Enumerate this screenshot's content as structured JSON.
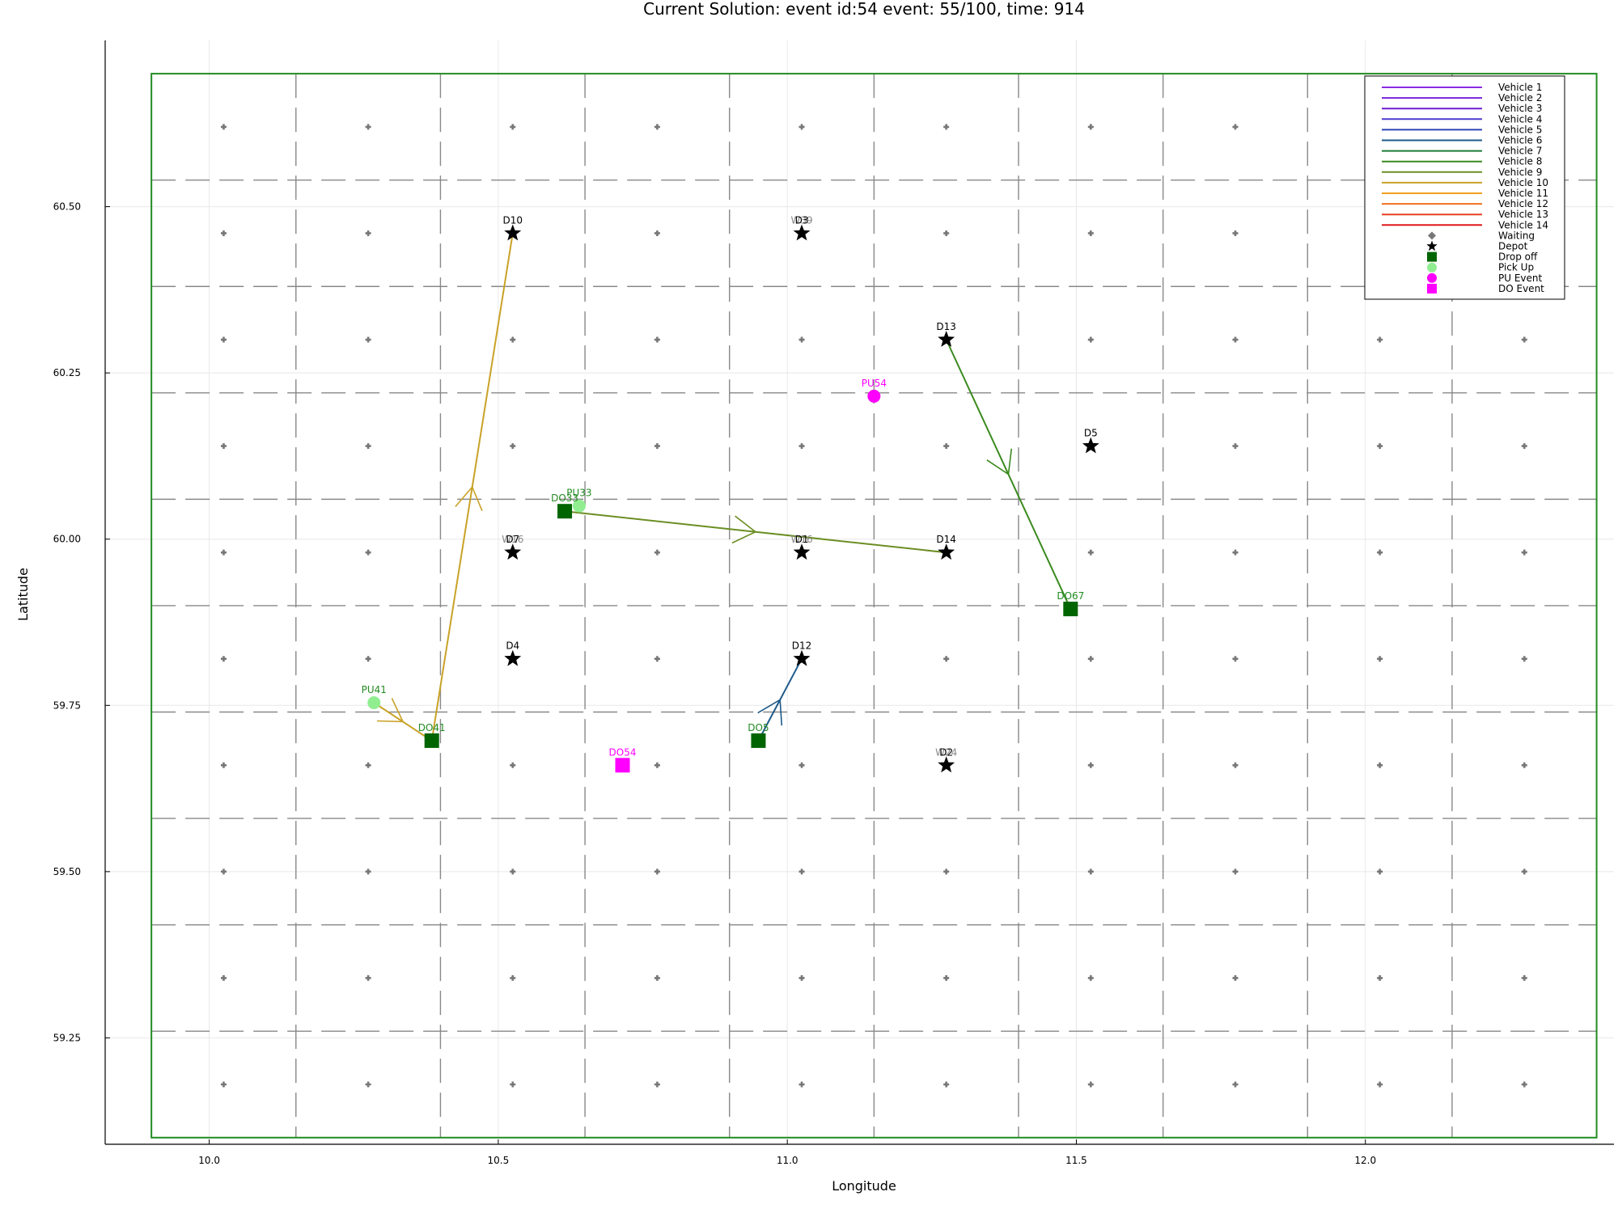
{
  "chart_data": {
    "type": "scatter",
    "title": "Current Solution: event id:54 event: 55/100, time: 914",
    "xlabel": "Longitude",
    "ylabel": "Latitude",
    "xlim": [
      9.82,
      12.43
    ],
    "ylim": [
      59.09,
      60.75
    ],
    "grid": true,
    "legend_position": "top-right",
    "x_ticks": [
      "10.0",
      "10.5",
      "11.0",
      "11.5",
      "12.0"
    ],
    "y_ticks": [
      "59.25",
      "59.50",
      "59.75",
      "60.00",
      "60.25",
      "60.50"
    ],
    "region": {
      "x": [
        9.9,
        12.4
      ],
      "y": [
        59.1,
        60.7
      ],
      "color": "#228B22"
    },
    "zone_grid": {
      "x": [
        10.15,
        10.4,
        10.65,
        10.9,
        11.15,
        11.4,
        11.65,
        11.9,
        12.15
      ],
      "y": [
        59.26,
        59.42,
        59.58,
        59.74,
        59.9,
        60.06,
        60.22,
        60.38,
        60.54
      ],
      "color": "#888888"
    },
    "waiting_grid": {
      "x": [
        10.025,
        10.275,
        10.525,
        10.775,
        11.025,
        11.275,
        11.525,
        11.775,
        12.025,
        12.275
      ],
      "y": [
        59.18,
        59.34,
        59.5,
        59.66,
        59.82,
        59.98,
        60.14,
        60.3,
        60.46,
        60.62
      ],
      "color": "#777777"
    },
    "waiting_labels": [
      {
        "label": "W39",
        "x": 11.025,
        "y": 60.46
      },
      {
        "label": "W16",
        "x": 10.525,
        "y": 59.98
      },
      {
        "label": "W16",
        "x": 11.025,
        "y": 59.98
      },
      {
        "label": "W24",
        "x": 11.275,
        "y": 59.66
      }
    ],
    "depots": [
      {
        "label": "D10",
        "x": 10.525,
        "y": 60.46
      },
      {
        "label": "D3",
        "x": 11.025,
        "y": 60.46
      },
      {
        "label": "D13",
        "x": 11.275,
        "y": 60.3
      },
      {
        "label": "D5",
        "x": 11.525,
        "y": 60.14
      },
      {
        "label": "D7",
        "x": 10.525,
        "y": 59.98
      },
      {
        "label": "D1",
        "x": 11.025,
        "y": 59.98
      },
      {
        "label": "D14",
        "x": 11.275,
        "y": 59.98
      },
      {
        "label": "D4",
        "x": 10.525,
        "y": 59.82
      },
      {
        "label": "D12",
        "x": 11.025,
        "y": 59.82
      },
      {
        "label": "D2",
        "x": 11.275,
        "y": 59.66
      }
    ],
    "dropoffs": [
      {
        "label": "DO33",
        "x": 10.615,
        "y": 60.042
      },
      {
        "label": "DO67",
        "x": 11.49,
        "y": 59.895
      },
      {
        "label": "DO41",
        "x": 10.385,
        "y": 59.697
      },
      {
        "label": "DO5",
        "x": 10.95,
        "y": 59.697
      }
    ],
    "pickups": [
      {
        "label": "PU33",
        "x": 10.64,
        "y": 60.05
      },
      {
        "label": "PU41",
        "x": 10.285,
        "y": 59.754
      }
    ],
    "pu_events": [
      {
        "label": "PU54",
        "x": 11.15,
        "y": 60.215
      }
    ],
    "do_events": [
      {
        "label": "DO54",
        "x": 10.715,
        "y": 59.66
      }
    ],
    "routes": [
      {
        "vehicle": "Vehicle 10",
        "color": "#c9a227",
        "points": [
          [
            10.285,
            59.754
          ],
          [
            10.385,
            59.697
          ],
          [
            10.525,
            60.46
          ]
        ]
      },
      {
        "vehicle": "Vehicle 9",
        "color": "#6b8e23",
        "points": [
          [
            10.615,
            60.042
          ],
          [
            11.275,
            59.98
          ]
        ]
      },
      {
        "vehicle": "Vehicle 8",
        "color": "#3a8a1e",
        "points": [
          [
            11.275,
            60.3
          ],
          [
            11.49,
            59.895
          ]
        ]
      },
      {
        "vehicle": "Vehicle 6",
        "color": "#1e5a8a",
        "points": [
          [
            10.95,
            59.697
          ],
          [
            11.025,
            59.82
          ]
        ]
      }
    ],
    "series": [
      {
        "name": "Vehicle 1",
        "color": "#8a2be2"
      },
      {
        "name": "Vehicle 2",
        "color": "#7a22d8"
      },
      {
        "name": "Vehicle 3",
        "color": "#6a1fd0"
      },
      {
        "name": "Vehicle 4",
        "color": "#4b3ad0"
      },
      {
        "name": "Vehicle 5",
        "color": "#2f45b8"
      },
      {
        "name": "Vehicle 6",
        "color": "#1e5a8a"
      },
      {
        "name": "Vehicle 7",
        "color": "#1f7a3a"
      },
      {
        "name": "Vehicle 8",
        "color": "#3a8a1e"
      },
      {
        "name": "Vehicle 9",
        "color": "#6b8e23"
      },
      {
        "name": "Vehicle 10",
        "color": "#c9a227"
      },
      {
        "name": "Vehicle 11",
        "color": "#f0a020"
      },
      {
        "name": "Vehicle 12",
        "color": "#f07020"
      },
      {
        "name": "Vehicle 13",
        "color": "#e8401e"
      },
      {
        "name": "Vehicle 14",
        "color": "#e01818"
      },
      {
        "name": "Waiting",
        "color": "#777777",
        "marker": "diamond"
      },
      {
        "name": "Depot",
        "color": "#000000",
        "marker": "star"
      },
      {
        "name": "Drop off",
        "color": "#006400",
        "marker": "square"
      },
      {
        "name": "Pick Up",
        "color": "#90ee90",
        "marker": "circle"
      },
      {
        "name": "PU Event",
        "color": "#ff00ff",
        "marker": "circle"
      },
      {
        "name": "DO Event",
        "color": "#ff00ff",
        "marker": "square"
      }
    ]
  }
}
